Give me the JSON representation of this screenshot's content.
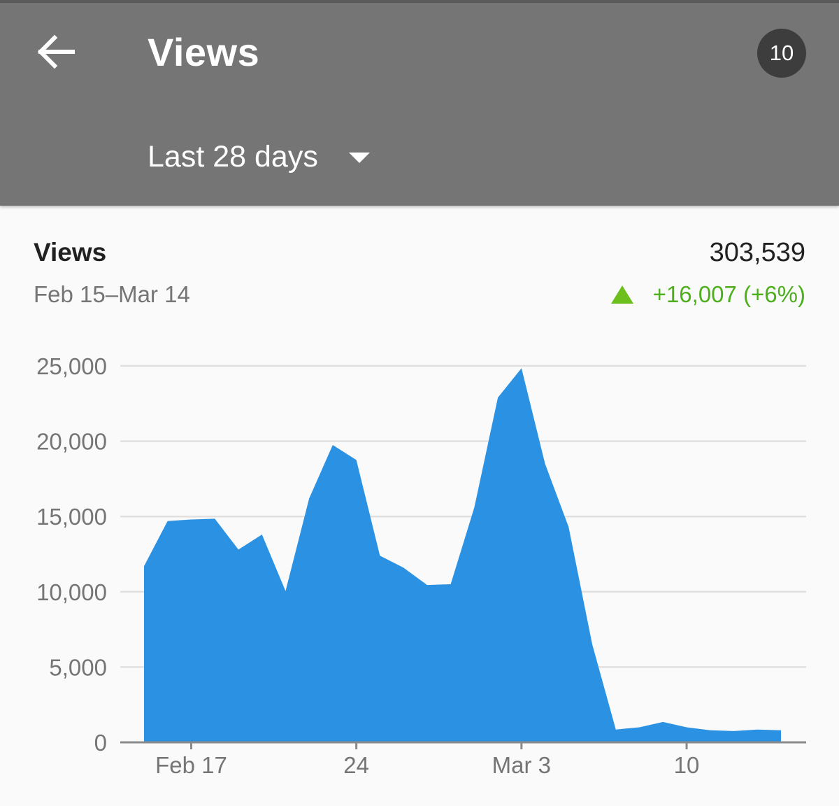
{
  "header": {
    "title": "Views",
    "badge": "10",
    "date_range": "Last 28 days"
  },
  "icons": {
    "back": "arrow-left-icon",
    "dropdown": "triangle-down-icon",
    "trend": "triangle-up-icon"
  },
  "colors": {
    "app_bar": "#757575",
    "area_fill": "#2a91e3",
    "increase": "#4caf1b"
  },
  "summary": {
    "metric": "Views",
    "dates": "Feb 15–Mar 14",
    "total": "303,539",
    "change": "+16,007 (+6%)"
  },
  "chart_data": {
    "type": "area",
    "x_start": "2019-02-15",
    "x": [
      "Feb 15",
      "Feb 16",
      "Feb 17",
      "Feb 18",
      "Feb 19",
      "Feb 20",
      "Feb 21",
      "Feb 22",
      "Feb 23",
      "Feb 24",
      "Feb 25",
      "Feb 26",
      "Feb 27",
      "Feb 28",
      "Mar 1",
      "Mar 2",
      "Mar 3",
      "Mar 4",
      "Mar 5",
      "Mar 6",
      "Mar 7",
      "Mar 8",
      "Mar 9",
      "Mar 10",
      "Mar 11",
      "Mar 12",
      "Mar 13",
      "Mar 14"
    ],
    "series": [
      {
        "name": "Views",
        "values": [
          11700,
          14700,
          14800,
          14850,
          12800,
          13800,
          10050,
          16200,
          19750,
          18750,
          12400,
          11600,
          10450,
          10500,
          15600,
          22900,
          24850,
          18500,
          14300,
          6500,
          850,
          1000,
          1350,
          1000,
          800,
          750,
          850,
          800
        ]
      }
    ],
    "xticks": [
      "Feb 17",
      "24",
      "Mar 3",
      "10"
    ],
    "yticks": [
      "0",
      "5,000",
      "10,000",
      "15,000",
      "20,000",
      "25,000"
    ],
    "ylim": [
      0,
      25000
    ],
    "grid": true,
    "legend": "none"
  }
}
